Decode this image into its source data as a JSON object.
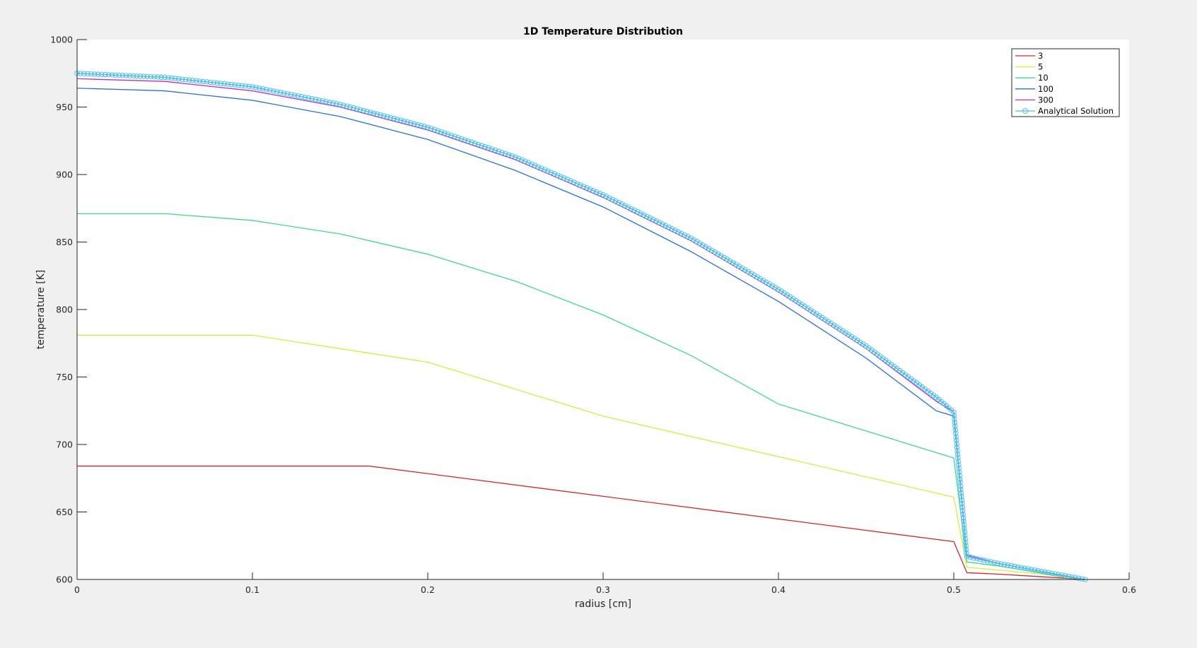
{
  "chart_data": {
    "type": "line",
    "title": "1D Temperature Distribution",
    "xlabel": "radius [cm]",
    "ylabel": "temperature [K]",
    "xlim": [
      0,
      0.6
    ],
    "ylim": [
      600,
      1000
    ],
    "xticks": [
      "0",
      "0.1",
      "0.2",
      "0.3",
      "0.4",
      "0.5",
      "0.6"
    ],
    "yticks": [
      "600",
      "650",
      "700",
      "750",
      "800",
      "850",
      "900",
      "950",
      "1000"
    ],
    "legend_position": "top-right",
    "grid": false,
    "series": [
      {
        "name": "3",
        "color": "#d62728",
        "x": [
          0,
          0.1667,
          0.3333,
          0.5,
          0.5075,
          0.525,
          0.55,
          0.575
        ],
        "y": [
          684,
          684,
          656,
          628,
          605,
          604,
          602,
          600
        ]
      },
      {
        "name": "5",
        "color": "#dfe83a",
        "x": [
          0,
          0.1,
          0.2,
          0.3,
          0.4,
          0.5,
          0.5075,
          0.525,
          0.55,
          0.575
        ],
        "y": [
          781,
          781,
          761,
          721,
          691,
          661,
          609,
          607,
          604,
          600
        ]
      },
      {
        "name": "10",
        "color": "#3ddc84",
        "x": [
          0,
          0.05,
          0.1,
          0.15,
          0.2,
          0.25,
          0.3,
          0.35,
          0.4,
          0.45,
          0.5,
          0.5075,
          0.525,
          0.55,
          0.575
        ],
        "y": [
          871,
          871,
          866,
          856,
          841,
          821,
          796,
          766,
          730,
          710,
          690,
          613,
          610,
          605,
          600
        ]
      },
      {
        "name": "100",
        "color": "#2c6fd6",
        "x": [
          0,
          0.05,
          0.1,
          0.15,
          0.2,
          0.25,
          0.3,
          0.35,
          0.4,
          0.45,
          0.49,
          0.5,
          0.5075,
          0.525,
          0.55,
          0.575
        ],
        "y": [
          964,
          962,
          955,
          943,
          926,
          903,
          876,
          843,
          806,
          764,
          725,
          721,
          617,
          612,
          606,
          600
        ]
      },
      {
        "name": "300",
        "color": "#b82fc9",
        "x": [
          0,
          0.05,
          0.1,
          0.15,
          0.2,
          0.25,
          0.3,
          0.35,
          0.4,
          0.45,
          0.49,
          0.5,
          0.5075,
          0.525,
          0.55,
          0.575
        ],
        "y": [
          971,
          969,
          962,
          950,
          933,
          911,
          883,
          851,
          813,
          771,
          732,
          724,
          618,
          612,
          606,
          600
        ]
      },
      {
        "name": "Analytical Solution",
        "color": "#4dbeee",
        "marker": "circle",
        "x": [
          0,
          0.05,
          0.1,
          0.15,
          0.2,
          0.25,
          0.3,
          0.35,
          0.4,
          0.45,
          0.49,
          0.5,
          0.5075,
          0.525,
          0.55,
          0.575
        ],
        "y": [
          975,
          972,
          965,
          952,
          935,
          913,
          885,
          853,
          815,
          773,
          735,
          724,
          617,
          612,
          606,
          600
        ]
      }
    ]
  }
}
